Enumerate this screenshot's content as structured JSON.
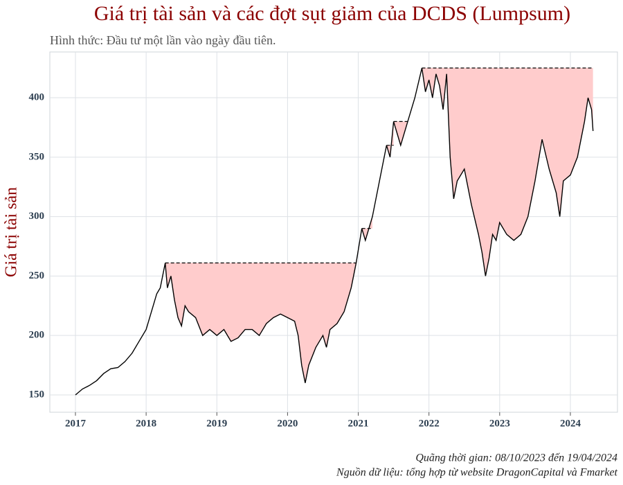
{
  "chart_data": {
    "type": "drawdown-line",
    "title": "Giá trị tài sản và các đợt sụt giảm của DCDS (Lumpsum)",
    "subtitle": "Hình thức: Đầu tư một lần vào ngày đầu tiên.",
    "y_label": "Giá trị tài sản",
    "footnotes": [
      "Quãng thời gian: 08/10/2023 đến 19/04/2024",
      "Nguồn dữ liệu: tổng hợp từ website DragonCapital và Fmarket"
    ],
    "x": [
      2017.0,
      2017.1,
      2017.2,
      2017.3,
      2017.4,
      2017.5,
      2017.6,
      2017.7,
      2017.8,
      2017.9,
      2018.0,
      2018.1,
      2018.15,
      2018.2,
      2018.27,
      2018.3,
      2018.35,
      2018.4,
      2018.45,
      2018.5,
      2018.55,
      2018.6,
      2018.7,
      2018.8,
      2018.9,
      2019.0,
      2019.1,
      2019.2,
      2019.3,
      2019.4,
      2019.5,
      2019.6,
      2019.7,
      2019.8,
      2019.9,
      2020.0,
      2020.1,
      2020.15,
      2020.2,
      2020.25,
      2020.3,
      2020.4,
      2020.5,
      2020.55,
      2020.6,
      2020.7,
      2020.8,
      2020.9,
      2020.97,
      2021.05,
      2021.1,
      2021.2,
      2021.3,
      2021.4,
      2021.45,
      2021.5,
      2021.55,
      2021.6,
      2021.7,
      2021.8,
      2021.9,
      2021.95,
      2022.0,
      2022.05,
      2022.1,
      2022.15,
      2022.2,
      2022.25,
      2022.3,
      2022.35,
      2022.4,
      2022.5,
      2022.6,
      2022.7,
      2022.75,
      2022.8,
      2022.85,
      2022.9,
      2022.95,
      2023.0,
      2023.1,
      2023.2,
      2023.3,
      2023.4,
      2023.5,
      2023.6,
      2023.7,
      2023.8,
      2023.85,
      2023.9,
      2024.0,
      2024.1,
      2024.2,
      2024.25,
      2024.3,
      2024.32
    ],
    "values": [
      150,
      155,
      158,
      162,
      168,
      172,
      173,
      178,
      185,
      195,
      205,
      225,
      235,
      240,
      261,
      240,
      250,
      230,
      215,
      208,
      225,
      220,
      215,
      200,
      205,
      200,
      205,
      195,
      198,
      205,
      205,
      200,
      210,
      215,
      218,
      215,
      212,
      200,
      175,
      160,
      175,
      190,
      200,
      190,
      205,
      210,
      220,
      240,
      261,
      290,
      280,
      300,
      330,
      360,
      350,
      380,
      370,
      360,
      380,
      400,
      425,
      405,
      415,
      400,
      420,
      410,
      390,
      420,
      350,
      315,
      330,
      340,
      310,
      285,
      270,
      250,
      265,
      285,
      280,
      295,
      285,
      280,
      285,
      300,
      330,
      365,
      340,
      320,
      300,
      330,
      335,
      350,
      380,
      400,
      390,
      372
    ],
    "color": "#000000",
    "drawdown_color": "#ffcccc",
    "xlim": [
      2016.638,
      2024.666
    ],
    "ylim": [
      135.4,
      438.5
    ],
    "xticks": [
      2017,
      2018,
      2019,
      2020,
      2021,
      2022,
      2023,
      2024
    ],
    "yticks": [
      150,
      200,
      250,
      300,
      350,
      400
    ],
    "grid": true
  }
}
